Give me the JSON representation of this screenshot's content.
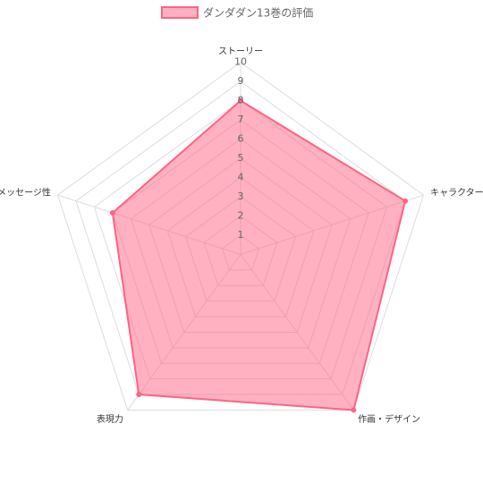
{
  "chart_data": {
    "type": "radar",
    "categories": [
      "ストーリー",
      "キャラクター",
      "作画・デザイン",
      "表現力",
      "メッセージ性"
    ],
    "series": [
      {
        "name": "ダンダダン13巻の評価",
        "color": "#ff6384",
        "values": [
          8,
          9,
          10,
          9,
          7
        ]
      }
    ],
    "ylim": [
      0,
      10
    ],
    "yticks": [
      1,
      2,
      3,
      4,
      5,
      6,
      7,
      8,
      9,
      10
    ],
    "grid": true,
    "legend": "top"
  }
}
